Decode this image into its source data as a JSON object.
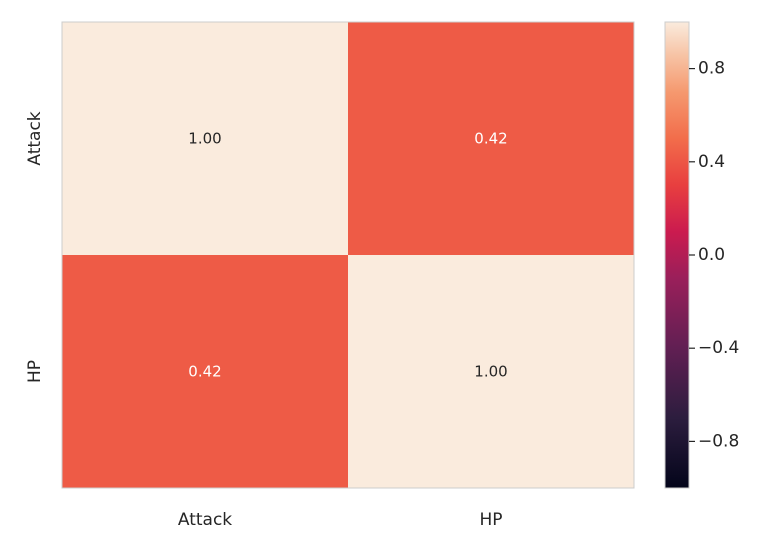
{
  "chart_data": {
    "type": "heatmap",
    "title": "",
    "xlabel": "",
    "ylabel": "",
    "x_categories": [
      "Attack",
      "HP"
    ],
    "y_categories": [
      "Attack",
      "HP"
    ],
    "values": [
      [
        1.0,
        0.42
      ],
      [
        0.42,
        1.0
      ]
    ],
    "cell_labels": [
      [
        "1.00",
        "0.42"
      ],
      [
        "0.42",
        "1.00"
      ]
    ],
    "colorbar": {
      "colormap": "rocket",
      "vmin": -1.0,
      "vmax": 1.0,
      "ticks": [
        0.8,
        0.4,
        0.0,
        -0.4,
        -0.8
      ],
      "tick_labels": [
        "0.8",
        "0.4",
        "0.0",
        "−0.4",
        "−0.8"
      ]
    },
    "cell_text_colors": {
      "dark": "#262626",
      "light": "#ffffff"
    }
  }
}
